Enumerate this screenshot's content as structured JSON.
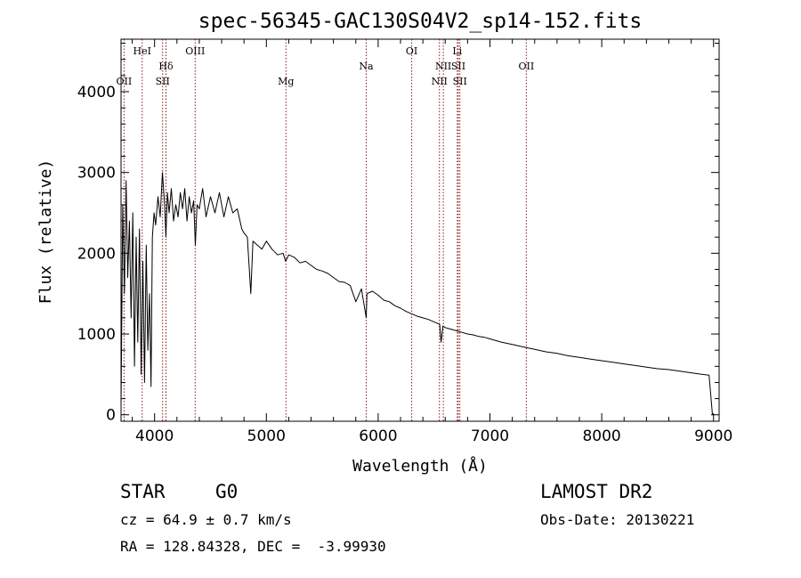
{
  "chart_data": {
    "type": "line",
    "title": "spec-56345-GAC130S04V2_sp14-152.fits",
    "xlabel": "Wavelength (Å)",
    "ylabel": "Flux (relative)",
    "xlim": [
      3700,
      9050
    ],
    "ylim": [
      -80,
      4650
    ],
    "x_ticks": [
      4000,
      5000,
      6000,
      7000,
      8000,
      9000
    ],
    "y_ticks": [
      0,
      1000,
      2000,
      3000,
      4000
    ],
    "x_tick_labels": [
      "4000",
      "5000",
      "6000",
      "7000",
      "8000",
      "9000"
    ],
    "y_tick_labels": [
      "0",
      "1000",
      "2000",
      "3000",
      "4000"
    ],
    "grid": false,
    "line_color": "#000000",
    "marker_color": "#8b1a1a",
    "series": [
      {
        "x": [
          3700,
          3715,
          3730,
          3745,
          3760,
          3775,
          3790,
          3805,
          3820,
          3835,
          3850,
          3865,
          3880,
          3895,
          3910,
          3925,
          3940,
          3955,
          3968,
          3980,
          3995,
          4010,
          4030,
          4050,
          4070,
          4090,
          4101,
          4115,
          4130,
          4150,
          4170,
          4190,
          4210,
          4230,
          4250,
          4270,
          4290,
          4310,
          4330,
          4350,
          4365,
          4380,
          4400,
          4430,
          4460,
          4500,
          4540,
          4580,
          4620,
          4660,
          4700,
          4740,
          4780,
          4800,
          4830,
          4861,
          4880,
          4920,
          4960,
          5000,
          5050,
          5100,
          5150,
          5172,
          5200,
          5250,
          5300,
          5350,
          5400,
          5450,
          5500,
          5550,
          5600,
          5650,
          5700,
          5750,
          5800,
          5850,
          5893,
          5900,
          5950,
          6000,
          6050,
          6100,
          6150,
          6200,
          6250,
          6300,
          6350,
          6400,
          6450,
          6500,
          6550,
          6563,
          6580,
          6600,
          6650,
          6700,
          6750,
          6800,
          6850,
          6900,
          6950,
          7000,
          7100,
          7200,
          7300,
          7400,
          7500,
          7600,
          7700,
          7800,
          7900,
          8000,
          8100,
          8200,
          8300,
          8400,
          8500,
          8600,
          8700,
          8800,
          8900,
          8960,
          8990
        ],
        "y": [
          100,
          2600,
          1500,
          2900,
          1700,
          2400,
          1200,
          2500,
          600,
          2200,
          900,
          2300,
          500,
          1900,
          400,
          2100,
          800,
          1500,
          350,
          2200,
          2500,
          2350,
          2700,
          2450,
          3000,
          2600,
          2200,
          2750,
          2500,
          2800,
          2400,
          2600,
          2450,
          2750,
          2550,
          2800,
          2400,
          2700,
          2500,
          2650,
          2100,
          2600,
          2550,
          2800,
          2450,
          2700,
          2500,
          2750,
          2450,
          2700,
          2500,
          2550,
          2300,
          2250,
          2200,
          1500,
          2150,
          2100,
          2050,
          2150,
          2050,
          1980,
          2000,
          1900,
          1980,
          1950,
          1880,
          1900,
          1850,
          1800,
          1780,
          1750,
          1700,
          1650,
          1640,
          1600,
          1400,
          1560,
          1200,
          1500,
          1530,
          1480,
          1420,
          1400,
          1350,
          1320,
          1280,
          1250,
          1220,
          1200,
          1180,
          1150,
          1120,
          900,
          1100,
          1080,
          1060,
          1040,
          1020,
          1000,
          990,
          970,
          960,
          940,
          900,
          870,
          840,
          810,
          780,
          760,
          730,
          710,
          690,
          670,
          650,
          630,
          610,
          590,
          570,
          560,
          540,
          520,
          500,
          490,
          0
        ]
      }
    ],
    "markers": [
      {
        "label": "OII",
        "x": 3727,
        "row": 3
      },
      {
        "label": "HeI",
        "x": 3889,
        "row": 1
      },
      {
        "label": "Hδ",
        "x": 4102,
        "row": 2
      },
      {
        "label": "SII",
        "x": 4072,
        "row": 3
      },
      {
        "label": "OIII",
        "x": 4363,
        "row": 1
      },
      {
        "label": "Mg",
        "x": 5175,
        "row": 3
      },
      {
        "label": "Na",
        "x": 5893,
        "row": 2
      },
      {
        "label": "OI",
        "x": 6300,
        "row": 1
      },
      {
        "label": "NII",
        "x": 6548,
        "row": 3
      },
      {
        "label": "NII",
        "x": 6583,
        "row": 2
      },
      {
        "label": "Li",
        "x": 6708,
        "row": 1
      },
      {
        "label": "SII",
        "x": 6717,
        "row": 2
      },
      {
        "label": "SII",
        "x": 6731,
        "row": 3
      },
      {
        "label": "OII",
        "x": 7325,
        "row": 2
      }
    ]
  },
  "info": {
    "object_class": "STAR",
    "subclass": "G0",
    "survey": "LAMOST DR2",
    "redshift_line": "cz = 64.9 ± 0.7 km/s",
    "obs_date": "Obs-Date: 20130221",
    "coords": "RA = 128.84328, DEC =  -3.99930"
  }
}
